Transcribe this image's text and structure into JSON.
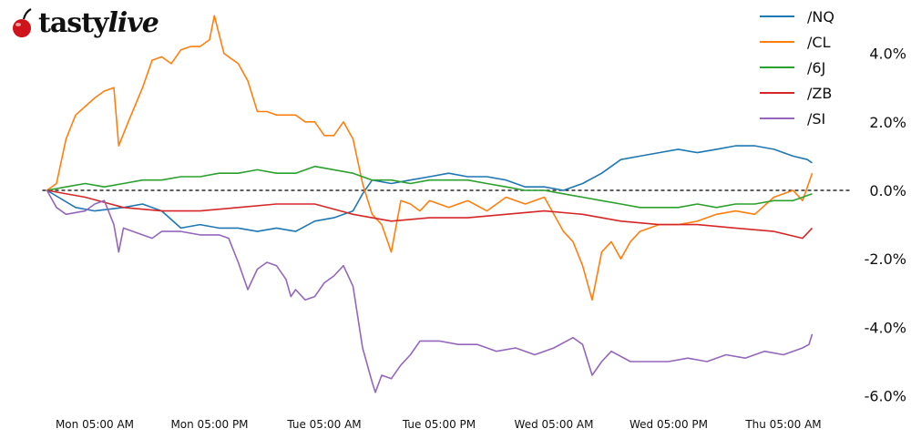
{
  "logo": {
    "text": "tastylive",
    "brand_color": "#d0121b"
  },
  "chart_data": {
    "type": "line",
    "title": "",
    "xlabel": "",
    "ylabel": "",
    "ylim": [
      -6.5,
      5.2
    ],
    "xlim": [
      "Mon 00:00",
      "Thu 08:00"
    ],
    "grid": false,
    "legend_position": "top-right",
    "y_axis_side": "right",
    "zero_line": {
      "value": 0,
      "style": "dashed",
      "color": "#000000"
    },
    "y_ticks": [
      4,
      2,
      0,
      -2,
      -4,
      -6
    ],
    "y_tick_labels": [
      "4.0%",
      "2.0%",
      "0.0%",
      "-2.0%",
      "-4.0%",
      "-6.0%"
    ],
    "x_ticks": [
      "Mon 05:00",
      "Mon 17:00",
      "Tue 05:00",
      "Tue 17:00",
      "Wed 05:00",
      "Wed 17:00",
      "Thu 05:00"
    ],
    "x_tick_labels": [
      "Mon 05:00 AM",
      "Mon 05:00 PM",
      "Tue 05:00 AM",
      "Tue 05:00 PM",
      "Wed 05:00 AM",
      "Wed 05:00 PM",
      "Thu 05:00 AM"
    ],
    "series": [
      {
        "name": "/NQ",
        "color": "#1f77b4",
        "points": [
          [
            "Mon 00:00",
            0
          ],
          [
            "Mon 03:00",
            -0.5
          ],
          [
            "Mon 05:00",
            -0.6
          ],
          [
            "Mon 08:00",
            -0.5
          ],
          [
            "Mon 10:00",
            -0.4
          ],
          [
            "Mon 12:00",
            -0.6
          ],
          [
            "Mon 14:00",
            -1.1
          ],
          [
            "Mon 16:00",
            -1.0
          ],
          [
            "Mon 18:00",
            -1.1
          ],
          [
            "Mon 20:00",
            -1.1
          ],
          [
            "Mon 22:00",
            -1.2
          ],
          [
            "Tue 00:00",
            -1.1
          ],
          [
            "Tue 02:00",
            -1.2
          ],
          [
            "Tue 04:00",
            -0.9
          ],
          [
            "Tue 06:00",
            -0.8
          ],
          [
            "Tue 08:00",
            -0.6
          ],
          [
            "Tue 09:00",
            -0.1
          ],
          [
            "Tue 10:00",
            0.3
          ],
          [
            "Tue 12:00",
            0.2
          ],
          [
            "Tue 14:00",
            0.3
          ],
          [
            "Tue 16:00",
            0.4
          ],
          [
            "Tue 18:00",
            0.5
          ],
          [
            "Tue 20:00",
            0.4
          ],
          [
            "Tue 22:00",
            0.4
          ],
          [
            "Wed 00:00",
            0.3
          ],
          [
            "Wed 02:00",
            0.1
          ],
          [
            "Wed 04:00",
            0.1
          ],
          [
            "Wed 06:00",
            0.0
          ],
          [
            "Wed 08:00",
            0.2
          ],
          [
            "Wed 10:00",
            0.5
          ],
          [
            "Wed 12:00",
            0.9
          ],
          [
            "Wed 14:00",
            1.0
          ],
          [
            "Wed 16:00",
            1.1
          ],
          [
            "Wed 18:00",
            1.2
          ],
          [
            "Wed 20:00",
            1.1
          ],
          [
            "Wed 22:00",
            1.2
          ],
          [
            "Thu 00:00",
            1.3
          ],
          [
            "Thu 02:00",
            1.3
          ],
          [
            "Thu 04:00",
            1.2
          ],
          [
            "Thu 06:00",
            1.0
          ],
          [
            "Thu 07:30",
            0.9
          ],
          [
            "Thu 08:00",
            0.8
          ]
        ]
      },
      {
        "name": "/CL",
        "color": "#ff7f0e",
        "points": [
          [
            "Mon 00:00",
            0
          ],
          [
            "Mon 01:00",
            0.2
          ],
          [
            "Mon 02:00",
            1.5
          ],
          [
            "Mon 03:00",
            2.2
          ],
          [
            "Mon 05:00",
            2.7
          ],
          [
            "Mon 06:00",
            2.9
          ],
          [
            "Mon 07:00",
            3.0
          ],
          [
            "Mon 07:30",
            1.3
          ],
          [
            "Mon 08:30",
            2.0
          ],
          [
            "Mon 10:00",
            3.0
          ],
          [
            "Mon 11:00",
            3.8
          ],
          [
            "Mon 12:00",
            3.9
          ],
          [
            "Mon 13:00",
            3.7
          ],
          [
            "Mon 14:00",
            4.1
          ],
          [
            "Mon 15:00",
            4.2
          ],
          [
            "Mon 16:00",
            4.2
          ],
          [
            "Mon 17:00",
            4.4
          ],
          [
            "Mon 17:30",
            5.1
          ],
          [
            "Mon 18:30",
            4.0
          ],
          [
            "Mon 20:00",
            3.7
          ],
          [
            "Mon 21:00",
            3.2
          ],
          [
            "Mon 22:00",
            2.3
          ],
          [
            "Mon 23:00",
            2.3
          ],
          [
            "Tue 00:00",
            2.2
          ],
          [
            "Tue 02:00",
            2.2
          ],
          [
            "Tue 03:00",
            2.0
          ],
          [
            "Tue 04:00",
            2.0
          ],
          [
            "Tue 05:00",
            1.6
          ],
          [
            "Tue 06:00",
            1.6
          ],
          [
            "Tue 07:00",
            2.0
          ],
          [
            "Tue 08:00",
            1.5
          ],
          [
            "Tue 09:00",
            0.2
          ],
          [
            "Tue 10:00",
            -0.7
          ],
          [
            "Tue 11:00",
            -1.0
          ],
          [
            "Tue 12:00",
            -1.8
          ],
          [
            "Tue 13:00",
            -0.3
          ],
          [
            "Tue 14:00",
            -0.4
          ],
          [
            "Tue 15:00",
            -0.6
          ],
          [
            "Tue 16:00",
            -0.3
          ],
          [
            "Tue 18:00",
            -0.5
          ],
          [
            "Tue 20:00",
            -0.3
          ],
          [
            "Tue 22:00",
            -0.6
          ],
          [
            "Wed 00:00",
            -0.2
          ],
          [
            "Wed 02:00",
            -0.4
          ],
          [
            "Wed 04:00",
            -0.2
          ],
          [
            "Wed 06:00",
            -1.2
          ],
          [
            "Wed 07:00",
            -1.5
          ],
          [
            "Wed 08:00",
            -2.2
          ],
          [
            "Wed 09:00",
            -3.2
          ],
          [
            "Wed 10:00",
            -1.8
          ],
          [
            "Wed 11:00",
            -1.5
          ],
          [
            "Wed 12:00",
            -2.0
          ],
          [
            "Wed 13:00",
            -1.5
          ],
          [
            "Wed 14:00",
            -1.2
          ],
          [
            "Wed 16:00",
            -1.0
          ],
          [
            "Wed 18:00",
            -1.0
          ],
          [
            "Wed 20:00",
            -0.9
          ],
          [
            "Wed 22:00",
            -0.7
          ],
          [
            "Thu 00:00",
            -0.6
          ],
          [
            "Thu 02:00",
            -0.7
          ],
          [
            "Thu 04:00",
            -0.2
          ],
          [
            "Thu 06:00",
            0.0
          ],
          [
            "Thu 07:00",
            -0.3
          ],
          [
            "Thu 08:00",
            0.5
          ]
        ]
      },
      {
        "name": "/6J",
        "color": "#2ca02c",
        "points": [
          [
            "Mon 00:00",
            0
          ],
          [
            "Mon 02:00",
            0.1
          ],
          [
            "Mon 04:00",
            0.2
          ],
          [
            "Mon 06:00",
            0.1
          ],
          [
            "Mon 08:00",
            0.2
          ],
          [
            "Mon 10:00",
            0.3
          ],
          [
            "Mon 12:00",
            0.3
          ],
          [
            "Mon 14:00",
            0.4
          ],
          [
            "Mon 16:00",
            0.4
          ],
          [
            "Mon 18:00",
            0.5
          ],
          [
            "Mon 20:00",
            0.5
          ],
          [
            "Mon 22:00",
            0.6
          ],
          [
            "Tue 00:00",
            0.5
          ],
          [
            "Tue 02:00",
            0.5
          ],
          [
            "Tue 04:00",
            0.7
          ],
          [
            "Tue 06:00",
            0.6
          ],
          [
            "Tue 08:00",
            0.5
          ],
          [
            "Tue 10:00",
            0.3
          ],
          [
            "Tue 12:00",
            0.3
          ],
          [
            "Tue 14:00",
            0.2
          ],
          [
            "Tue 16:00",
            0.3
          ],
          [
            "Tue 18:00",
            0.3
          ],
          [
            "Tue 20:00",
            0.3
          ],
          [
            "Tue 22:00",
            0.2
          ],
          [
            "Wed 00:00",
            0.1
          ],
          [
            "Wed 02:00",
            0.0
          ],
          [
            "Wed 04:00",
            0.0
          ],
          [
            "Wed 06:00",
            -0.1
          ],
          [
            "Wed 08:00",
            -0.2
          ],
          [
            "Wed 10:00",
            -0.3
          ],
          [
            "Wed 12:00",
            -0.4
          ],
          [
            "Wed 14:00",
            -0.5
          ],
          [
            "Wed 16:00",
            -0.5
          ],
          [
            "Wed 18:00",
            -0.5
          ],
          [
            "Wed 20:00",
            -0.4
          ],
          [
            "Wed 22:00",
            -0.5
          ],
          [
            "Thu 00:00",
            -0.4
          ],
          [
            "Thu 02:00",
            -0.4
          ],
          [
            "Thu 04:00",
            -0.3
          ],
          [
            "Thu 06:00",
            -0.3
          ],
          [
            "Thu 08:00",
            -0.1
          ]
        ]
      },
      {
        "name": "/ZB",
        "color": "#d62728",
        "points": [
          [
            "Mon 00:00",
            0
          ],
          [
            "Mon 04:00",
            -0.2
          ],
          [
            "Mon 08:00",
            -0.5
          ],
          [
            "Mon 12:00",
            -0.6
          ],
          [
            "Mon 16:00",
            -0.6
          ],
          [
            "Mon 20:00",
            -0.5
          ],
          [
            "Tue 00:00",
            -0.4
          ],
          [
            "Tue 04:00",
            -0.4
          ],
          [
            "Tue 08:00",
            -0.7
          ],
          [
            "Tue 12:00",
            -0.9
          ],
          [
            "Tue 16:00",
            -0.8
          ],
          [
            "Tue 20:00",
            -0.8
          ],
          [
            "Wed 00:00",
            -0.7
          ],
          [
            "Wed 04:00",
            -0.6
          ],
          [
            "Wed 08:00",
            -0.7
          ],
          [
            "Wed 12:00",
            -0.9
          ],
          [
            "Wed 16:00",
            -1.0
          ],
          [
            "Wed 20:00",
            -1.0
          ],
          [
            "Thu 00:00",
            -1.1
          ],
          [
            "Thu 04:00",
            -1.2
          ],
          [
            "Thu 07:00",
            -1.4
          ],
          [
            "Thu 08:00",
            -1.1
          ]
        ]
      },
      {
        "name": "/SI",
        "color": "#9467bd",
        "points": [
          [
            "Mon 00:00",
            0
          ],
          [
            "Mon 01:00",
            -0.5
          ],
          [
            "Mon 02:00",
            -0.7
          ],
          [
            "Mon 04:00",
            -0.6
          ],
          [
            "Mon 05:00",
            -0.4
          ],
          [
            "Mon 06:00",
            -0.3
          ],
          [
            "Mon 07:00",
            -1.0
          ],
          [
            "Mon 07:30",
            -1.8
          ],
          [
            "Mon 08:00",
            -1.1
          ],
          [
            "Mon 09:00",
            -1.2
          ],
          [
            "Mon 10:00",
            -1.3
          ],
          [
            "Mon 11:00",
            -1.4
          ],
          [
            "Mon 12:00",
            -1.2
          ],
          [
            "Mon 14:00",
            -1.2
          ],
          [
            "Mon 16:00",
            -1.3
          ],
          [
            "Mon 18:00",
            -1.3
          ],
          [
            "Mon 19:00",
            -1.4
          ],
          [
            "Mon 20:00",
            -2.1
          ],
          [
            "Mon 21:00",
            -2.9
          ],
          [
            "Mon 22:00",
            -2.3
          ],
          [
            "Mon 23:00",
            -2.1
          ],
          [
            "Tue 00:00",
            -2.2
          ],
          [
            "Tue 01:00",
            -2.6
          ],
          [
            "Tue 01:30",
            -3.1
          ],
          [
            "Tue 02:00",
            -2.9
          ],
          [
            "Tue 03:00",
            -3.2
          ],
          [
            "Tue 04:00",
            -3.1
          ],
          [
            "Tue 05:00",
            -2.7
          ],
          [
            "Tue 06:00",
            -2.5
          ],
          [
            "Tue 07:00",
            -2.2
          ],
          [
            "Tue 08:00",
            -2.8
          ],
          [
            "Tue 09:00",
            -4.6
          ],
          [
            "Tue 10:00",
            -5.6
          ],
          [
            "Tue 10:20",
            -5.9
          ],
          [
            "Tue 11:00",
            -5.4
          ],
          [
            "Tue 12:00",
            -5.5
          ],
          [
            "Tue 13:00",
            -5.1
          ],
          [
            "Tue 14:00",
            -4.8
          ],
          [
            "Tue 15:00",
            -4.4
          ],
          [
            "Tue 17:00",
            -4.4
          ],
          [
            "Tue 19:00",
            -4.5
          ],
          [
            "Tue 21:00",
            -4.5
          ],
          [
            "Tue 23:00",
            -4.7
          ],
          [
            "Wed 01:00",
            -4.6
          ],
          [
            "Wed 03:00",
            -4.8
          ],
          [
            "Wed 05:00",
            -4.6
          ],
          [
            "Wed 07:00",
            -4.3
          ],
          [
            "Wed 08:00",
            -4.5
          ],
          [
            "Wed 09:00",
            -5.4
          ],
          [
            "Wed 10:00",
            -5.0
          ],
          [
            "Wed 11:00",
            -4.7
          ],
          [
            "Wed 13:00",
            -5.0
          ],
          [
            "Wed 15:00",
            -5.0
          ],
          [
            "Wed 17:00",
            -5.0
          ],
          [
            "Wed 19:00",
            -4.9
          ],
          [
            "Wed 21:00",
            -5.0
          ],
          [
            "Wed 23:00",
            -4.8
          ],
          [
            "Thu 01:00",
            -4.9
          ],
          [
            "Thu 03:00",
            -4.7
          ],
          [
            "Thu 05:00",
            -4.8
          ],
          [
            "Thu 07:00",
            -4.6
          ],
          [
            "Thu 07:40",
            -4.5
          ],
          [
            "Thu 08:00",
            -4.2
          ]
        ]
      }
    ]
  }
}
